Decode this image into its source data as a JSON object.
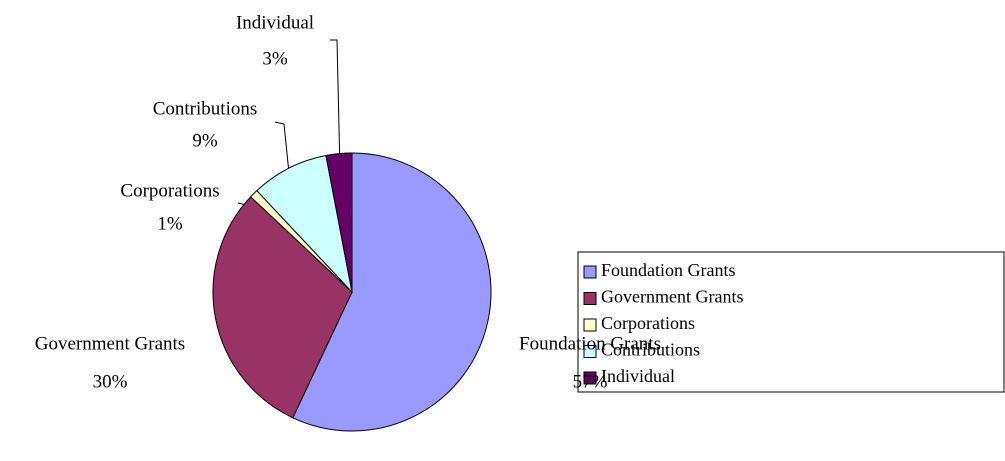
{
  "chart_data": {
    "type": "pie",
    "categories": [
      "Foundation Grants",
      "Government Grants",
      "Corporations",
      "Contributions",
      "Individual"
    ],
    "values": [
      57,
      30,
      1,
      9,
      3
    ],
    "value_labels": [
      "57%",
      "30%",
      "1%",
      "9%",
      "3%"
    ],
    "colors": [
      "#9999ff",
      "#993366",
      "#ffffcc",
      "#ccffff",
      "#660066"
    ],
    "legend": "right"
  }
}
